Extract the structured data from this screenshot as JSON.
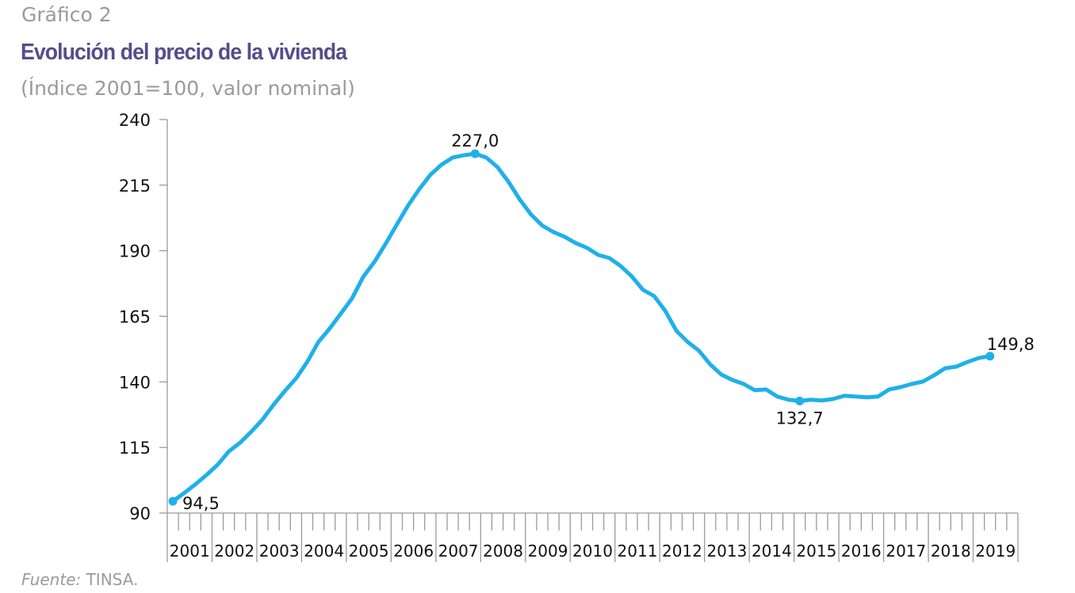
{
  "header": {
    "kicker": "Gráfico 2",
    "title": "Evolución del precio de la vivienda",
    "subtitle": "(Índice 2001=100, valor nominal)"
  },
  "footer": {
    "source_label": "Fuente:",
    "source_value": "TINSA."
  },
  "chart_data": {
    "type": "line",
    "title": "Evolución del precio de la vivienda",
    "subtitle": "(Índice 2001=100, valor nominal)",
    "xlabel": "",
    "ylabel": "",
    "ylim": [
      90,
      240
    ],
    "yticks": [
      90,
      115,
      140,
      165,
      190,
      215,
      240
    ],
    "xtick_labels": [
      "2001",
      "2002",
      "2003",
      "2004",
      "2005",
      "2006",
      "2007",
      "2008",
      "2009",
      "2010",
      "2011",
      "2012",
      "2013",
      "2014",
      "2015",
      "2016",
      "2017",
      "2018",
      "2019"
    ],
    "frequency": "quarterly",
    "grid": false,
    "line_color": "#1fb0ea",
    "values": [
      94.5,
      97.6,
      100.9,
      104.5,
      108.4,
      113.5,
      116.8,
      121.0,
      125.6,
      131.3,
      136.5,
      141.3,
      147.6,
      155.2,
      160.3,
      166.0,
      171.8,
      180.0,
      185.7,
      192.6,
      199.9,
      207.1,
      213.4,
      218.9,
      222.8,
      225.5,
      226.4,
      227.0,
      225.5,
      221.9,
      216.2,
      209.5,
      203.8,
      199.6,
      197.1,
      195.3,
      192.9,
      191.1,
      188.4,
      187.2,
      184.2,
      180.2,
      175.1,
      172.7,
      167.0,
      159.4,
      155.2,
      151.9,
      146.7,
      142.8,
      140.7,
      139.2,
      136.8,
      137.1,
      134.4,
      133.2,
      132.7,
      133.2,
      132.9,
      133.5,
      134.7,
      134.4,
      134.1,
      134.4,
      137.1,
      138.0,
      139.2,
      140.1,
      142.5,
      145.2,
      145.8,
      147.6,
      149.1,
      149.8
    ],
    "annotations": [
      {
        "index": 0,
        "label": "94,5",
        "position": "right"
      },
      {
        "index": 27,
        "label": "227,0",
        "position": "above"
      },
      {
        "index": 56,
        "label": "132,7",
        "position": "below"
      },
      {
        "index": 73,
        "label": "149,8",
        "position": "above-right"
      }
    ]
  }
}
